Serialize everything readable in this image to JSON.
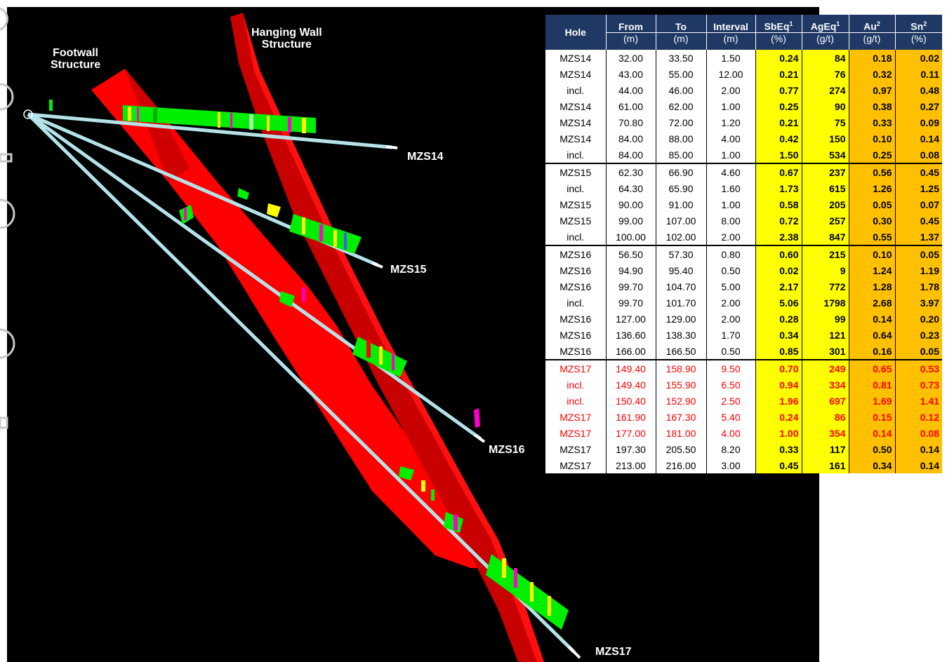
{
  "structures": {
    "footwall": "Footwall\nStructure",
    "hanging_wall": "Hanging Wall\nStructure"
  },
  "holes": [
    "MZS14",
    "MZS15",
    "MZS16",
    "MZS17"
  ],
  "colors": {
    "background": "#000000",
    "structure_red": "#ff0000",
    "structure_dark_red": "#b00000",
    "drillhole_cyan": "#a8f0f8",
    "assay_green": "#00ee00",
    "assay_yellow": "#ffff00",
    "assay_magenta": "#ff00cc",
    "header_navy": "#1f3864",
    "sb_ag_highlight": "#ffff00",
    "au_sn_highlight": "#ffc000",
    "new_result_text": "#ff0000"
  },
  "table": {
    "headers": [
      {
        "label": "Hole",
        "unit": ""
      },
      {
        "label": "From",
        "unit": "(m)"
      },
      {
        "label": "To",
        "unit": "(m)"
      },
      {
        "label": "Interval",
        "unit": "(m)"
      },
      {
        "label": "SbEq",
        "sup": "1",
        "unit": "(%)"
      },
      {
        "label": "AgEq",
        "sup": "1",
        "unit": "(g/t)"
      },
      {
        "label": "Au",
        "sup": "2",
        "unit": "(g/t)"
      },
      {
        "label": "Sn",
        "sup": "2",
        "unit": "(%)"
      }
    ],
    "rows": [
      {
        "hole": "MZS14",
        "from": "32.00",
        "to": "33.50",
        "interval": "1.50",
        "sbeq": "0.24",
        "ageq": "84",
        "au": "0.18",
        "sn": "0.02"
      },
      {
        "hole": "MZS14",
        "from": "43.00",
        "to": "55.00",
        "interval": "12.00",
        "sbeq": "0.21",
        "ageq": "76",
        "au": "0.32",
        "sn": "0.11"
      },
      {
        "hole": "incl.",
        "from": "44.00",
        "to": "46.00",
        "interval": "2.00",
        "sbeq": "0.77",
        "ageq": "274",
        "au": "0.97",
        "sn": "0.48"
      },
      {
        "hole": "MZS14",
        "from": "61.00",
        "to": "62.00",
        "interval": "1.00",
        "sbeq": "0.25",
        "ageq": "90",
        "au": "0.38",
        "sn": "0.27"
      },
      {
        "hole": "MZS14",
        "from": "70.80",
        "to": "72.00",
        "interval": "1.20",
        "sbeq": "0.21",
        "ageq": "75",
        "au": "0.33",
        "sn": "0.09"
      },
      {
        "hole": "MZS14",
        "from": "84.00",
        "to": "88.00",
        "interval": "4.00",
        "sbeq": "0.42",
        "ageq": "150",
        "au": "0.10",
        "sn": "0.14"
      },
      {
        "hole": "incl.",
        "from": "84.00",
        "to": "85.00",
        "interval": "1.00",
        "sbeq": "1.50",
        "ageq": "534",
        "au": "0.25",
        "sn": "0.08"
      },
      {
        "hole": "MZS15",
        "from": "62.30",
        "to": "66.90",
        "interval": "4.60",
        "sbeq": "0.67",
        "ageq": "237",
        "au": "0.56",
        "sn": "0.45",
        "sep": true
      },
      {
        "hole": "incl.",
        "from": "64.30",
        "to": "65.90",
        "interval": "1.60",
        "sbeq": "1.73",
        "ageq": "615",
        "au": "1.26",
        "sn": "1.25"
      },
      {
        "hole": "MZS15",
        "from": "90.00",
        "to": "91.00",
        "interval": "1.00",
        "sbeq": "0.58",
        "ageq": "205",
        "au": "0.05",
        "sn": "0.07"
      },
      {
        "hole": "MZS15",
        "from": "99.00",
        "to": "107.00",
        "interval": "8.00",
        "sbeq": "0.72",
        "ageq": "257",
        "au": "0.30",
        "sn": "0.45"
      },
      {
        "hole": "incl.",
        "from": "100.00",
        "to": "102.00",
        "interval": "2.00",
        "sbeq": "2.38",
        "ageq": "847",
        "au": "0.55",
        "sn": "1.37"
      },
      {
        "hole": "MZS16",
        "from": "56.50",
        "to": "57.30",
        "interval": "0.80",
        "sbeq": "0.60",
        "ageq": "215",
        "au": "0.10",
        "sn": "0.05",
        "sep": true
      },
      {
        "hole": "MZS16",
        "from": "94.90",
        "to": "95.40",
        "interval": "0.50",
        "sbeq": "0.02",
        "ageq": "9",
        "au": "1.24",
        "sn": "1.19"
      },
      {
        "hole": "MZS16",
        "from": "99.70",
        "to": "104.70",
        "interval": "5.00",
        "sbeq": "2.17",
        "ageq": "772",
        "au": "1.28",
        "sn": "1.78"
      },
      {
        "hole": "incl.",
        "from": "99.70",
        "to": "101.70",
        "interval": "2.00",
        "sbeq": "5.06",
        "ageq": "1798",
        "au": "2.68",
        "sn": "3.97"
      },
      {
        "hole": "MZS16",
        "from": "127.00",
        "to": "129.00",
        "interval": "2.00",
        "sbeq": "0.28",
        "ageq": "99",
        "au": "0.14",
        "sn": "0.20"
      },
      {
        "hole": "MZS16",
        "from": "136.60",
        "to": "138.30",
        "interval": "1.70",
        "sbeq": "0.34",
        "ageq": "121",
        "au": "0.64",
        "sn": "0.23"
      },
      {
        "hole": "MZS16",
        "from": "166.00",
        "to": "166.50",
        "interval": "0.50",
        "sbeq": "0.85",
        "ageq": "301",
        "au": "0.16",
        "sn": "0.05"
      },
      {
        "hole": "MZS17",
        "from": "149.40",
        "to": "158.90",
        "interval": "9.50",
        "sbeq": "0.70",
        "ageq": "249",
        "au": "0.65",
        "sn": "0.53",
        "sep": true,
        "red": true
      },
      {
        "hole": "incl.",
        "from": "149.40",
        "to": "155.90",
        "interval": "6.50",
        "sbeq": "0.94",
        "ageq": "334",
        "au": "0.81",
        "sn": "0.73",
        "red": true
      },
      {
        "hole": "incl.",
        "from": "150.40",
        "to": "152.90",
        "interval": "2.50",
        "sbeq": "1.96",
        "ageq": "697",
        "au": "1.69",
        "sn": "1.41",
        "red": true
      },
      {
        "hole": "MZS17",
        "from": "161.90",
        "to": "167.30",
        "interval": "5.40",
        "sbeq": "0.24",
        "ageq": "86",
        "au": "0.15",
        "sn": "0.12",
        "red": true
      },
      {
        "hole": "MZS17",
        "from": "177.00",
        "to": "181.00",
        "interval": "4.00",
        "sbeq": "1.00",
        "ageq": "354",
        "au": "0.14",
        "sn": "0.08",
        "red": true
      },
      {
        "hole": "MZS17",
        "from": "197.30",
        "to": "205.50",
        "interval": "8.20",
        "sbeq": "0.33",
        "ageq": "117",
        "au": "0.50",
        "sn": "0.14"
      },
      {
        "hole": "MZS17",
        "from": "213.00",
        "to": "216.00",
        "interval": "3.00",
        "sbeq": "0.45",
        "ageq": "161",
        "au": "0.34",
        "sn": "0.14"
      }
    ]
  }
}
